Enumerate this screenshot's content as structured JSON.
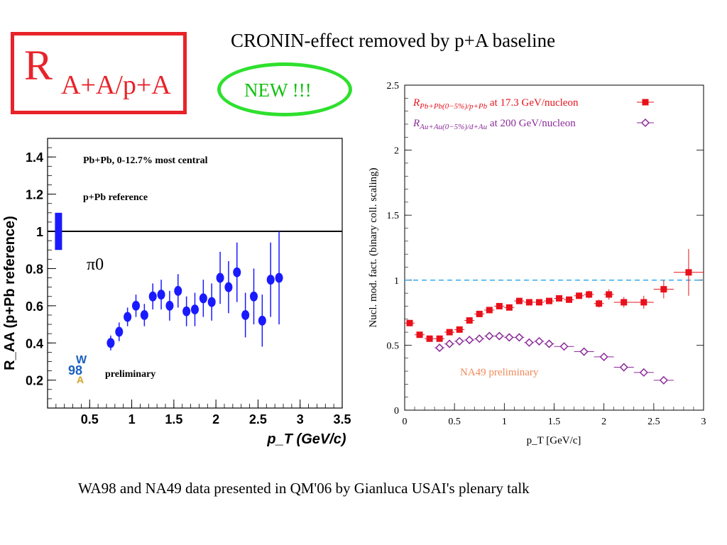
{
  "title": {
    "main": "R",
    "subscript": "A+A/p+A"
  },
  "headline": "CRONIN-effect removed by p+A baseline",
  "badge": "NEW !!!",
  "caption": "WA98   and  NA49  data presented in QM'06 by Gianluca USAI's plenary talk",
  "colors": {
    "title": "#e8232a",
    "badge_border": "#2ee02e",
    "badge_text": "#11c011",
    "left_points": "#1a1aff",
    "pb": "#e8101a",
    "au": "#8b2a9a",
    "ref_line": "#33aaee",
    "prelim": "#f08a5a"
  },
  "chart_data": [
    {
      "type": "scatter",
      "xlabel": "p_T (GeV/c)",
      "ylabel": "R_AA (p+Pb reference)",
      "xlim": [
        0,
        3.5
      ],
      "ylim": [
        0.05,
        1.5
      ],
      "xticks": [
        0.5,
        1,
        1.5,
        2,
        2.5,
        3,
        3.5
      ],
      "yticks": [
        0.2,
        0.4,
        0.6,
        0.8,
        1,
        1.2,
        1.4
      ],
      "ref_line_y": 1,
      "annotations": [
        "Pb+Pb, 0-12.7% most central",
        "p+Pb reference",
        "π0",
        "preliminary"
      ],
      "logo_text": [
        "W",
        "98",
        "A"
      ],
      "norm_box": {
        "x": 0.13,
        "y_low": 0.9,
        "y_high": 1.1
      },
      "series": [
        {
          "points": [
            {
              "x": 0.75,
              "y": 0.4,
              "err": 0.04
            },
            {
              "x": 0.85,
              "y": 0.46,
              "err": 0.05
            },
            {
              "x": 0.95,
              "y": 0.54,
              "err": 0.05
            },
            {
              "x": 1.05,
              "y": 0.6,
              "err": 0.06
            },
            {
              "x": 1.15,
              "y": 0.55,
              "err": 0.06
            },
            {
              "x": 1.25,
              "y": 0.65,
              "err": 0.07
            },
            {
              "x": 1.35,
              "y": 0.66,
              "err": 0.08
            },
            {
              "x": 1.45,
              "y": 0.6,
              "err": 0.08
            },
            {
              "x": 1.55,
              "y": 0.68,
              "err": 0.09
            },
            {
              "x": 1.65,
              "y": 0.57,
              "err": 0.08
            },
            {
              "x": 1.75,
              "y": 0.58,
              "err": 0.09
            },
            {
              "x": 1.85,
              "y": 0.64,
              "err": 0.1
            },
            {
              "x": 1.95,
              "y": 0.62,
              "err": 0.1
            },
            {
              "x": 2.05,
              "y": 0.75,
              "err": 0.14
            },
            {
              "x": 2.15,
              "y": 0.7,
              "err": 0.14
            },
            {
              "x": 2.25,
              "y": 0.78,
              "err": 0.16
            },
            {
              "x": 2.35,
              "y": 0.55,
              "err": 0.12
            },
            {
              "x": 2.45,
              "y": 0.65,
              "err": 0.15
            },
            {
              "x": 2.55,
              "y": 0.52,
              "err": 0.14
            },
            {
              "x": 2.65,
              "y": 0.74,
              "err": 0.2
            },
            {
              "x": 2.75,
              "y": 0.75,
              "err": 0.25
            }
          ]
        }
      ]
    },
    {
      "type": "scatter",
      "xlabel": "p_T [GeV/c]",
      "ylabel": "Nucl. mod. fact. (binary coll. scaling)",
      "xlim": [
        0,
        3
      ],
      "ylim": [
        0,
        2.5
      ],
      "xticks": [
        0,
        0.5,
        1,
        1.5,
        2,
        2.5,
        3
      ],
      "yticks": [
        0,
        0.5,
        1,
        1.5,
        2,
        2.5
      ],
      "ref_line_y": 1,
      "annotation": "NA49 preliminary",
      "legend": "top-left",
      "series": [
        {
          "name_main": "R",
          "name_sub": "Pb+Pb(0−5%)/p+Pb",
          "name_rest": " at 17.3 GeV/nucleon",
          "marker": "square",
          "points": [
            {
              "x": 0.05,
              "y": 0.67,
              "xerr": 0.05,
              "err": 0.02
            },
            {
              "x": 0.15,
              "y": 0.58,
              "xerr": 0.05,
              "err": 0.02
            },
            {
              "x": 0.25,
              "y": 0.55,
              "xerr": 0.05,
              "err": 0.02
            },
            {
              "x": 0.35,
              "y": 0.55,
              "xerr": 0.05,
              "err": 0.02
            },
            {
              "x": 0.45,
              "y": 0.6,
              "xerr": 0.05,
              "err": 0.02
            },
            {
              "x": 0.55,
              "y": 0.62,
              "xerr": 0.05,
              "err": 0.02
            },
            {
              "x": 0.65,
              "y": 0.69,
              "xerr": 0.05,
              "err": 0.02
            },
            {
              "x": 0.75,
              "y": 0.74,
              "xerr": 0.05,
              "err": 0.02
            },
            {
              "x": 0.85,
              "y": 0.77,
              "xerr": 0.05,
              "err": 0.02
            },
            {
              "x": 0.95,
              "y": 0.8,
              "xerr": 0.05,
              "err": 0.02
            },
            {
              "x": 1.05,
              "y": 0.79,
              "xerr": 0.05,
              "err": 0.02
            },
            {
              "x": 1.15,
              "y": 0.84,
              "xerr": 0.05,
              "err": 0.02
            },
            {
              "x": 1.25,
              "y": 0.83,
              "xerr": 0.05,
              "err": 0.02
            },
            {
              "x": 1.35,
              "y": 0.83,
              "xerr": 0.05,
              "err": 0.02
            },
            {
              "x": 1.45,
              "y": 0.84,
              "xerr": 0.05,
              "err": 0.02
            },
            {
              "x": 1.55,
              "y": 0.86,
              "xerr": 0.05,
              "err": 0.02
            },
            {
              "x": 1.65,
              "y": 0.85,
              "xerr": 0.05,
              "err": 0.02
            },
            {
              "x": 1.75,
              "y": 0.88,
              "xerr": 0.05,
              "err": 0.02
            },
            {
              "x": 1.85,
              "y": 0.89,
              "xerr": 0.05,
              "err": 0.03
            },
            {
              "x": 1.95,
              "y": 0.82,
              "xerr": 0.05,
              "err": 0.03
            },
            {
              "x": 2.05,
              "y": 0.89,
              "xerr": 0.05,
              "err": 0.04
            },
            {
              "x": 2.2,
              "y": 0.83,
              "xerr": 0.1,
              "err": 0.04
            },
            {
              "x": 2.4,
              "y": 0.83,
              "xerr": 0.1,
              "err": 0.05
            },
            {
              "x": 2.6,
              "y": 0.93,
              "xerr": 0.1,
              "err": 0.07
            },
            {
              "x": 2.85,
              "y": 1.06,
              "xerr": 0.15,
              "err": 0.18
            }
          ]
        },
        {
          "name_main": "R",
          "name_sub": "Au+Au(0−5%)/d+Au",
          "name_rest": " at 200 GeV/nucleon",
          "marker": "diamond-open",
          "points": [
            {
              "x": 0.35,
              "y": 0.48,
              "xerr": 0.05,
              "err": 0.01
            },
            {
              "x": 0.45,
              "y": 0.51,
              "xerr": 0.05,
              "err": 0.01
            },
            {
              "x": 0.55,
              "y": 0.53,
              "xerr": 0.05,
              "err": 0.01
            },
            {
              "x": 0.65,
              "y": 0.54,
              "xerr": 0.05,
              "err": 0.01
            },
            {
              "x": 0.75,
              "y": 0.55,
              "xerr": 0.05,
              "err": 0.01
            },
            {
              "x": 0.85,
              "y": 0.57,
              "xerr": 0.05,
              "err": 0.01
            },
            {
              "x": 0.95,
              "y": 0.57,
              "xerr": 0.05,
              "err": 0.01
            },
            {
              "x": 1.05,
              "y": 0.56,
              "xerr": 0.05,
              "err": 0.01
            },
            {
              "x": 1.15,
              "y": 0.56,
              "xerr": 0.05,
              "err": 0.01
            },
            {
              "x": 1.25,
              "y": 0.52,
              "xerr": 0.05,
              "err": 0.01
            },
            {
              "x": 1.35,
              "y": 0.53,
              "xerr": 0.05,
              "err": 0.01
            },
            {
              "x": 1.45,
              "y": 0.51,
              "xerr": 0.05,
              "err": 0.01
            },
            {
              "x": 1.6,
              "y": 0.49,
              "xerr": 0.1,
              "err": 0.01
            },
            {
              "x": 1.8,
              "y": 0.45,
              "xerr": 0.1,
              "err": 0.01
            },
            {
              "x": 2.0,
              "y": 0.41,
              "xerr": 0.1,
              "err": 0.01
            },
            {
              "x": 2.2,
              "y": 0.33,
              "xerr": 0.1,
              "err": 0.01
            },
            {
              "x": 2.4,
              "y": 0.29,
              "xerr": 0.1,
              "err": 0.01
            },
            {
              "x": 2.6,
              "y": 0.23,
              "xerr": 0.1,
              "err": 0.01
            }
          ]
        }
      ]
    }
  ]
}
